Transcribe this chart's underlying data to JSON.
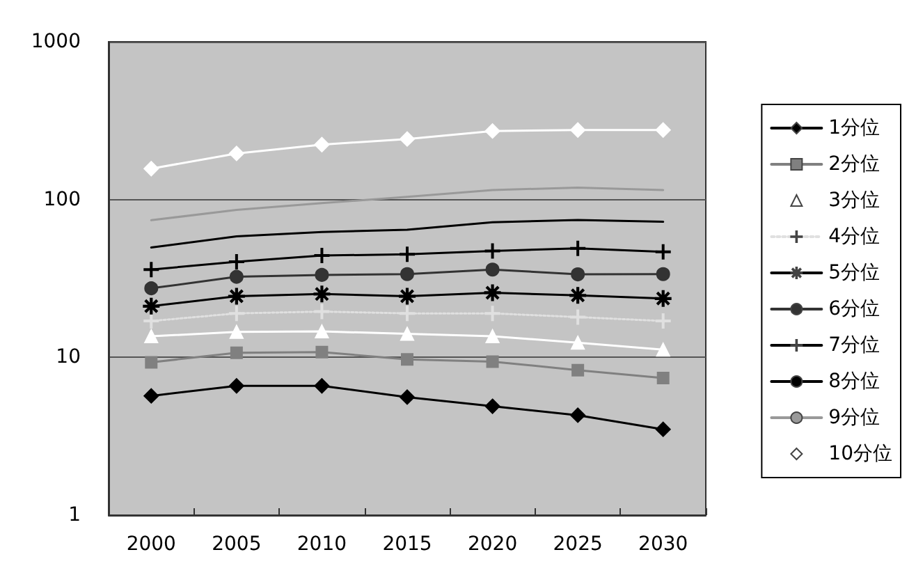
{
  "chart_data": {
    "type": "line",
    "categories": [
      "2000",
      "2005",
      "2010",
      "2015",
      "2020",
      "2025",
      "2030"
    ],
    "series": [
      {
        "name": "1分位",
        "color": "#000000",
        "marker": "diamond",
        "line_style": "solid",
        "values": [
          5.7,
          6.6,
          6.6,
          5.6,
          4.9,
          4.3,
          3.5
        ]
      },
      {
        "name": "2分位",
        "color": "#808080",
        "marker": "square",
        "line_style": "solid",
        "values": [
          9.3,
          10.7,
          10.8,
          9.7,
          9.4,
          8.3,
          7.4
        ]
      },
      {
        "name": "3分位",
        "color": "#ffffff",
        "marker": "triangle",
        "line_style": "solid",
        "values": [
          13.6,
          14.5,
          14.6,
          14.1,
          13.6,
          12.4,
          11.2
        ]
      },
      {
        "name": "4分位",
        "color": "#e0e0e0",
        "marker": "cross",
        "line_style": "dotted",
        "values": [
          17,
          19,
          19.5,
          19,
          19,
          18,
          17
        ]
      },
      {
        "name": "5分位",
        "color": "#000000",
        "marker": "star",
        "line_style": "solid",
        "values": [
          21.1,
          24.4,
          25.2,
          24.4,
          25.7,
          24.7,
          23.6
        ]
      },
      {
        "name": "6分位",
        "color": "#333333",
        "marker": "circle",
        "line_style": "solid",
        "values": [
          27.4,
          32.4,
          33.3,
          33.7,
          36,
          33.6,
          33.7
        ]
      },
      {
        "name": "7分位",
        "color": "#000000",
        "marker": "cross",
        "line_style": "solid",
        "values": [
          36,
          40.4,
          44.2,
          45,
          47.2,
          49.1,
          46.6
        ]
      },
      {
        "name": "8分位",
        "color": "#000000",
        "marker": "none",
        "line_style": "solid",
        "values": [
          49.7,
          58.5,
          62.3,
          64.4,
          71.8,
          74.2,
          72.3
        ]
      },
      {
        "name": "9分位",
        "color": "#999999",
        "marker": "none",
        "line_style": "solid",
        "values": [
          74,
          86,
          95,
          104,
          115,
          119,
          115
        ]
      },
      {
        "name": "10分位",
        "color": "#ffffff",
        "marker": "diamond",
        "line_style": "solid",
        "values": [
          157,
          196,
          223,
          242,
          272,
          276,
          276
        ]
      }
    ],
    "ylim": [
      1,
      1000
    ],
    "yticks": [
      1,
      10,
      100,
      1000
    ],
    "log": true,
    "grid": "y",
    "legend": "right"
  }
}
